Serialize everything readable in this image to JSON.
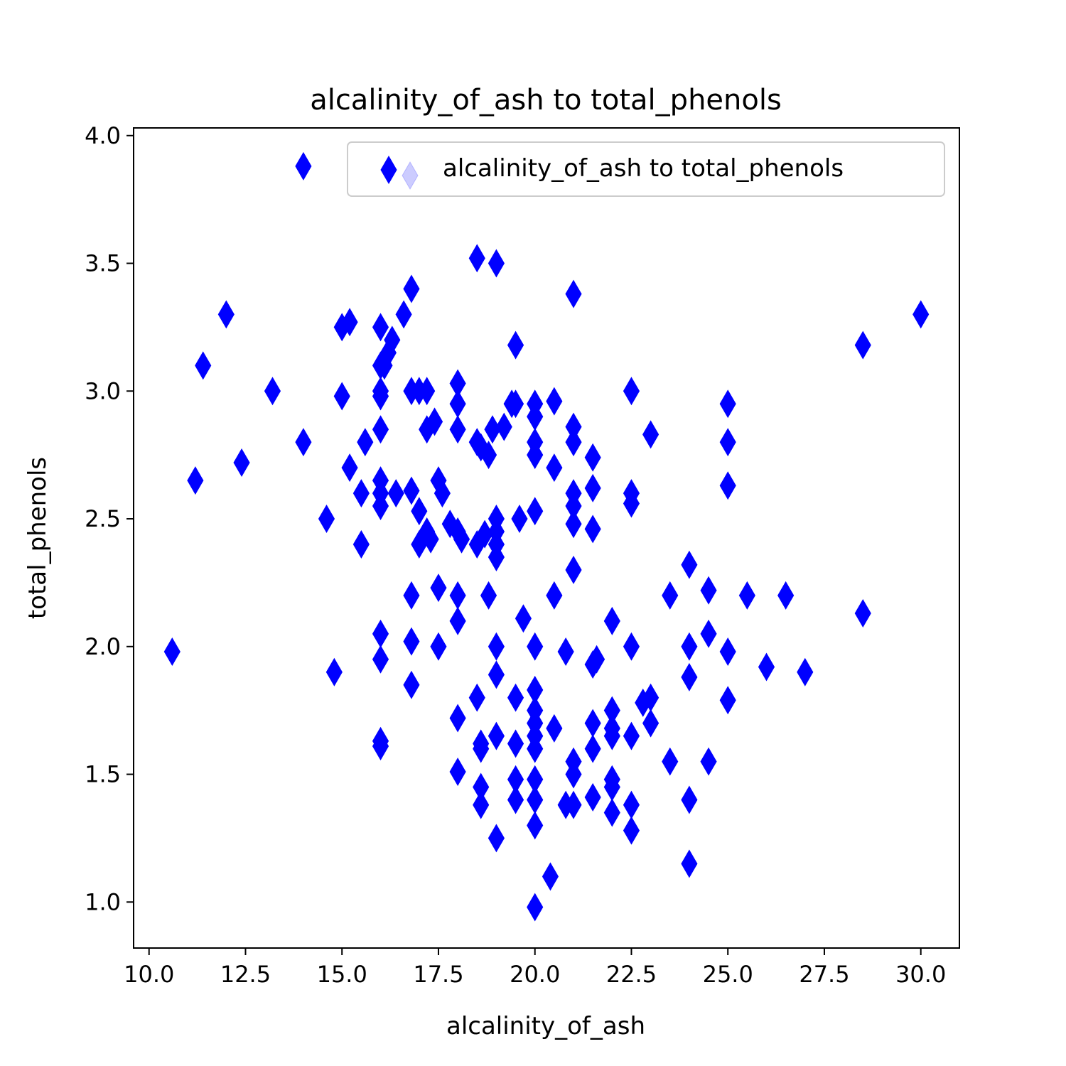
{
  "chart_data": {
    "type": "scatter",
    "title": "alcalinity_of_ash to total_phenols",
    "xlabel": "alcalinity_of_ash",
    "ylabel": "total_phenols",
    "xlim": [
      9.6,
      31.0
    ],
    "ylim": [
      0.82,
      4.03
    ],
    "xticks": [
      "10.0",
      "12.5",
      "15.0",
      "17.5",
      "20.0",
      "22.5",
      "25.0",
      "27.5",
      "30.0"
    ],
    "yticks": [
      "1.0",
      "1.5",
      "2.0",
      "2.5",
      "3.0",
      "3.5",
      "4.0"
    ],
    "grid": false,
    "legend": {
      "position": "top-right",
      "entries": [
        "alcalinity_of_ash to total_phenols"
      ]
    },
    "marker": "thin-diamond",
    "color": "#0000ff",
    "series": [
      {
        "name": "alcalinity_of_ash to total_phenols",
        "points": [
          [
            14.0,
            3.88
          ],
          [
            18.5,
            3.52
          ],
          [
            19.0,
            3.5
          ],
          [
            16.8,
            3.4
          ],
          [
            21.0,
            3.38
          ],
          [
            12.0,
            3.3
          ],
          [
            30.0,
            3.3
          ],
          [
            16.6,
            3.3
          ],
          [
            15.2,
            3.27
          ],
          [
            15.0,
            3.25
          ],
          [
            16.0,
            3.25
          ],
          [
            16.3,
            3.2
          ],
          [
            16.2,
            3.15
          ],
          [
            16.1,
            3.1
          ],
          [
            16.0,
            3.1
          ],
          [
            11.4,
            3.1
          ],
          [
            19.5,
            3.18
          ],
          [
            28.5,
            3.18
          ],
          [
            13.2,
            3.0
          ],
          [
            15.0,
            2.98
          ],
          [
            16.0,
            3.0
          ],
          [
            16.0,
            2.98
          ],
          [
            16.8,
            3.0
          ],
          [
            17.0,
            3.0
          ],
          [
            17.2,
            3.0
          ],
          [
            18.0,
            3.03
          ],
          [
            18.0,
            2.95
          ],
          [
            19.4,
            2.95
          ],
          [
            19.5,
            2.95
          ],
          [
            20.0,
            2.95
          ],
          [
            20.0,
            2.9
          ],
          [
            20.5,
            2.96
          ],
          [
            22.5,
            3.0
          ],
          [
            25.0,
            2.95
          ],
          [
            17.2,
            2.85
          ],
          [
            17.4,
            2.88
          ],
          [
            18.0,
            2.85
          ],
          [
            18.9,
            2.85
          ],
          [
            19.2,
            2.86
          ],
          [
            21.0,
            2.86
          ],
          [
            23.0,
            2.83
          ],
          [
            14.0,
            2.8
          ],
          [
            15.6,
            2.8
          ],
          [
            18.5,
            2.8
          ],
          [
            18.6,
            2.78
          ],
          [
            18.8,
            2.75
          ],
          [
            20.0,
            2.8
          ],
          [
            20.0,
            2.75
          ],
          [
            21.0,
            2.8
          ],
          [
            21.5,
            2.74
          ],
          [
            25.0,
            2.8
          ],
          [
            16.0,
            2.85
          ],
          [
            12.4,
            2.72
          ],
          [
            11.2,
            2.65
          ],
          [
            15.2,
            2.7
          ],
          [
            15.5,
            2.6
          ],
          [
            16.0,
            2.65
          ],
          [
            16.0,
            2.6
          ],
          [
            16.0,
            2.55
          ],
          [
            16.4,
            2.6
          ],
          [
            16.8,
            2.61
          ],
          [
            17.5,
            2.65
          ],
          [
            17.6,
            2.6
          ],
          [
            20.5,
            2.7
          ],
          [
            21.0,
            2.6
          ],
          [
            21.5,
            2.62
          ],
          [
            22.5,
            2.6
          ],
          [
            22.5,
            2.56
          ],
          [
            25.0,
            2.63
          ],
          [
            14.6,
            2.5
          ],
          [
            17.0,
            2.53
          ],
          [
            17.2,
            2.45
          ],
          [
            17.3,
            2.42
          ],
          [
            17.0,
            2.4
          ],
          [
            17.8,
            2.48
          ],
          [
            18.0,
            2.45
          ],
          [
            18.1,
            2.42
          ],
          [
            18.5,
            2.4
          ],
          [
            18.7,
            2.44
          ],
          [
            19.0,
            2.5
          ],
          [
            19.0,
            2.45
          ],
          [
            19.0,
            2.4
          ],
          [
            19.0,
            2.35
          ],
          [
            19.6,
            2.5
          ],
          [
            20.0,
            2.53
          ],
          [
            21.0,
            2.55
          ],
          [
            21.0,
            2.48
          ],
          [
            21.5,
            2.46
          ],
          [
            15.5,
            2.4
          ],
          [
            21.0,
            2.3
          ],
          [
            24.0,
            2.32
          ],
          [
            17.5,
            2.23
          ],
          [
            16.8,
            2.2
          ],
          [
            18.0,
            2.2
          ],
          [
            18.8,
            2.2
          ],
          [
            20.5,
            2.2
          ],
          [
            23.5,
            2.2
          ],
          [
            24.5,
            2.22
          ],
          [
            25.5,
            2.2
          ],
          [
            26.5,
            2.2
          ],
          [
            28.5,
            2.13
          ],
          [
            19.7,
            2.11
          ],
          [
            18.0,
            2.1
          ],
          [
            22.0,
            2.1
          ],
          [
            10.6,
            1.98
          ],
          [
            14.8,
            1.9
          ],
          [
            16.0,
            2.05
          ],
          [
            16.0,
            1.95
          ],
          [
            16.8,
            2.02
          ],
          [
            17.5,
            2.0
          ],
          [
            19.0,
            2.0
          ],
          [
            20.0,
            2.0
          ],
          [
            20.8,
            1.98
          ],
          [
            21.5,
            1.93
          ],
          [
            21.6,
            1.95
          ],
          [
            22.5,
            2.0
          ],
          [
            24.0,
            2.0
          ],
          [
            24.0,
            1.88
          ],
          [
            24.5,
            2.05
          ],
          [
            25.0,
            1.98
          ],
          [
            26.0,
            1.92
          ],
          [
            27.0,
            1.9
          ],
          [
            19.0,
            1.89
          ],
          [
            16.8,
            1.85
          ],
          [
            20.0,
            1.83
          ],
          [
            18.5,
            1.8
          ],
          [
            19.5,
            1.8
          ],
          [
            20.0,
            1.75
          ],
          [
            20.0,
            1.7
          ],
          [
            22.0,
            1.75
          ],
          [
            22.8,
            1.78
          ],
          [
            23.0,
            1.8
          ],
          [
            25.0,
            1.79
          ],
          [
            18.0,
            1.72
          ],
          [
            20.0,
            1.65
          ],
          [
            20.0,
            1.6
          ],
          [
            20.5,
            1.68
          ],
          [
            21.5,
            1.7
          ],
          [
            21.5,
            1.6
          ],
          [
            22.0,
            1.68
          ],
          [
            22.0,
            1.65
          ],
          [
            22.5,
            1.65
          ],
          [
            23.0,
            1.7
          ],
          [
            18.6,
            1.62
          ],
          [
            19.0,
            1.65
          ],
          [
            19.5,
            1.62
          ],
          [
            16.0,
            1.63
          ],
          [
            16.0,
            1.61
          ],
          [
            18.6,
            1.6
          ],
          [
            18.0,
            1.51
          ],
          [
            19.5,
            1.48
          ],
          [
            20.0,
            1.48
          ],
          [
            21.0,
            1.55
          ],
          [
            21.0,
            1.5
          ],
          [
            22.0,
            1.48
          ],
          [
            22.0,
            1.45
          ],
          [
            23.5,
            1.55
          ],
          [
            24.5,
            1.55
          ],
          [
            18.6,
            1.45
          ],
          [
            18.6,
            1.38
          ],
          [
            19.5,
            1.4
          ],
          [
            20.0,
            1.4
          ],
          [
            20.8,
            1.38
          ],
          [
            21.0,
            1.38
          ],
          [
            21.5,
            1.41
          ],
          [
            22.0,
            1.35
          ],
          [
            22.5,
            1.38
          ],
          [
            24.0,
            1.4
          ],
          [
            20.0,
            1.3
          ],
          [
            22.5,
            1.28
          ],
          [
            19.0,
            1.25
          ],
          [
            24.0,
            1.15
          ],
          [
            20.4,
            1.1
          ],
          [
            20.0,
            0.98
          ]
        ]
      }
    ]
  }
}
